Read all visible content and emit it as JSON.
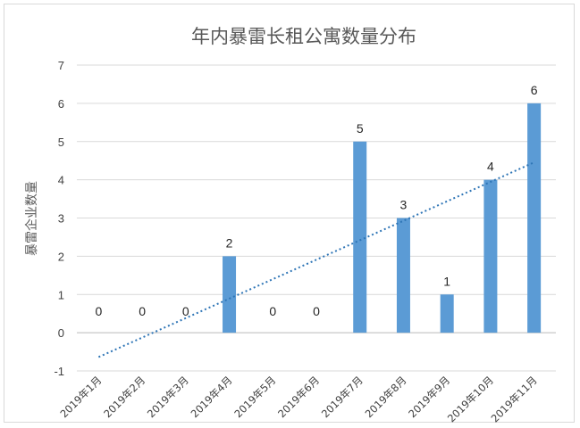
{
  "chart_data": {
    "type": "bar",
    "title": "年内暴雷长租公寓数量分布",
    "ylabel": "暴雷企业数量",
    "xlabel": "",
    "categories": [
      "2019年1月",
      "2019年2月",
      "2019年3月",
      "2019年4月",
      "2019年5月",
      "2019年6月",
      "2019年7月",
      "2019年8月",
      "2019年9月",
      "2019年10月",
      "2019年11月"
    ],
    "series": [
      {
        "values": [
          0,
          0,
          0,
          2,
          0,
          0,
          5,
          3,
          1,
          4,
          6
        ]
      }
    ],
    "data_labels": [
      "0",
      "0",
      "0",
      "2",
      "0",
      "0",
      "5",
      "3",
      "1",
      "4",
      "6"
    ],
    "ylim": [
      -1,
      7
    ],
    "yticks": [
      "-1",
      "0",
      "1",
      "2",
      "3",
      "4",
      "5",
      "6",
      "7"
    ],
    "trendline": {
      "type": "linear",
      "style": "dotted"
    },
    "grid": true,
    "legend": "none",
    "colors": {
      "bar": "#5b9bd5",
      "trend": "#2e75b6",
      "grid": "#d9d9d9"
    }
  }
}
